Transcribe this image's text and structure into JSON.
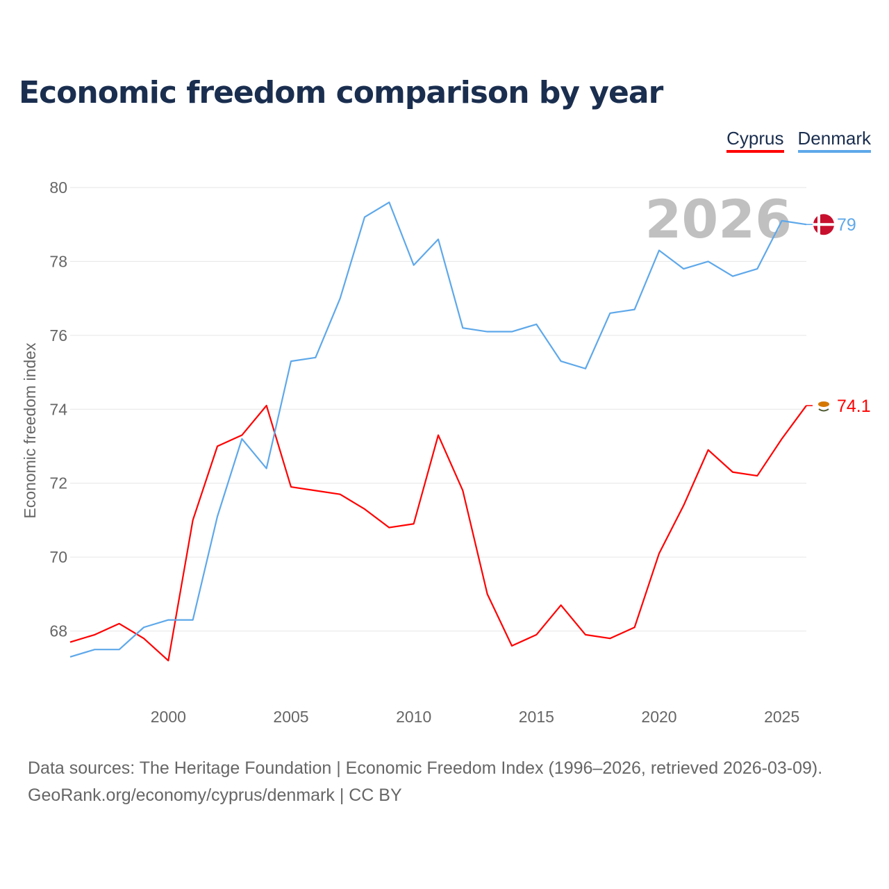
{
  "title": "Economic freedom comparison by year",
  "watermark_year": "2026",
  "source_line1": "Data sources: The Heritage Foundation | Economic Freedom Index (1996–2026, retrieved 2026-03-09).",
  "source_line2": "GeoRank.org/economy/cyprus/denmark | CC BY",
  "chart_data": {
    "type": "line",
    "title": "Economic freedom comparison by year",
    "xlabel": "",
    "ylabel": "Economic freedom index",
    "xlim": [
      1996,
      2026
    ],
    "ylim": [
      66,
      80
    ],
    "xticks": [
      2000,
      2005,
      2010,
      2015,
      2020,
      2025
    ],
    "yticks": [
      68,
      70,
      72,
      74,
      76,
      78,
      80
    ],
    "grid": true,
    "legend_placement": "top-right",
    "x": [
      1996,
      1997,
      1998,
      1999,
      2000,
      2001,
      2002,
      2003,
      2004,
      2005,
      2006,
      2007,
      2008,
      2009,
      2010,
      2011,
      2012,
      2013,
      2014,
      2015,
      2016,
      2017,
      2018,
      2019,
      2020,
      2021,
      2022,
      2023,
      2024,
      2025,
      2026
    ],
    "series": [
      {
        "name": "Cyprus",
        "color": "#ff0000",
        "end_label": "74.1",
        "values": [
          67.7,
          67.9,
          68.2,
          67.8,
          67.2,
          71.0,
          73.0,
          73.3,
          74.1,
          71.9,
          71.8,
          71.7,
          71.3,
          70.8,
          70.9,
          73.3,
          71.8,
          69.0,
          67.6,
          67.9,
          68.7,
          67.9,
          67.8,
          68.1,
          70.1,
          71.4,
          72.9,
          72.3,
          72.2,
          73.2,
          74.1
        ]
      },
      {
        "name": "Denmark",
        "color": "#5ea8ea",
        "end_label": "79",
        "values": [
          67.3,
          67.5,
          67.5,
          68.1,
          68.3,
          68.3,
          71.1,
          73.2,
          72.4,
          75.3,
          75.4,
          77.0,
          79.2,
          79.6,
          77.9,
          78.6,
          76.2,
          76.1,
          76.1,
          76.3,
          75.3,
          75.1,
          76.6,
          76.7,
          78.3,
          77.8,
          78.0,
          77.6,
          77.8,
          79.1,
          79.0
        ]
      }
    ]
  }
}
